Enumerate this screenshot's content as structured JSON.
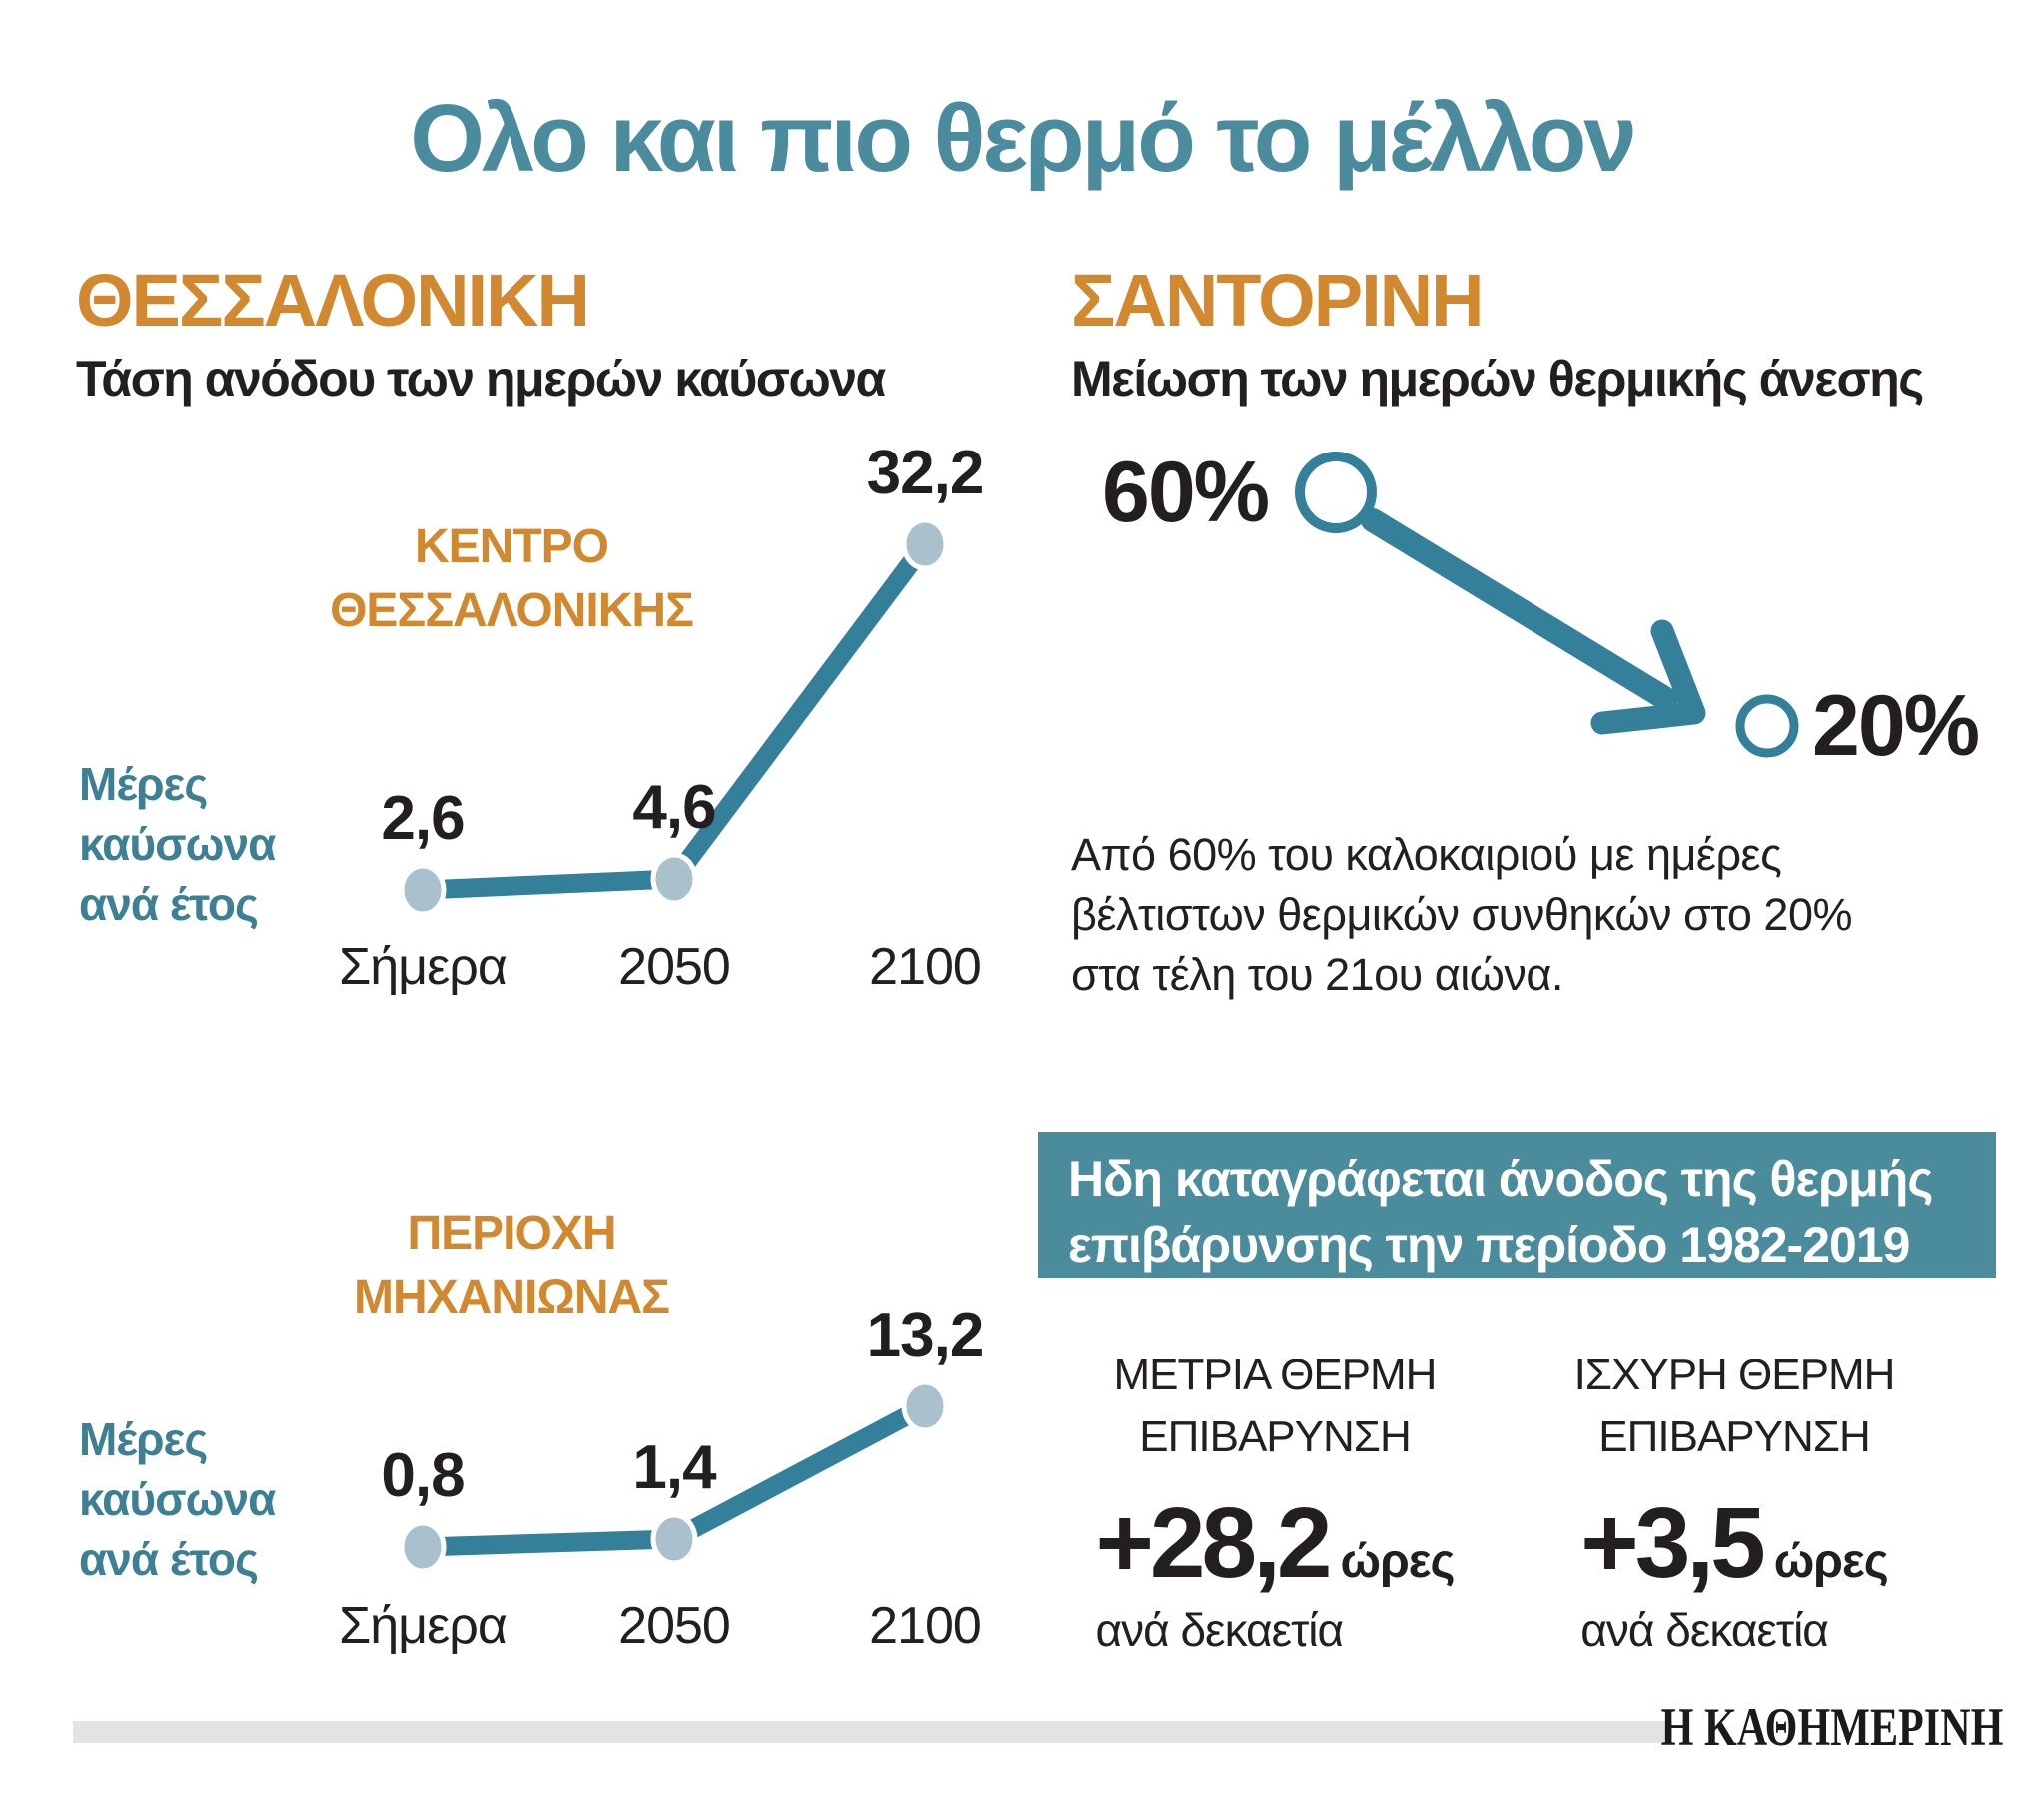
{
  "title": "Ολο και πιο θερμό το μέλλον",
  "colors": {
    "title_teal": "#4a8b9d",
    "orange": "#d1882e",
    "line_teal": "#34809b",
    "dot_fill": "#a9c0cd",
    "label_teal": "#3d7f93",
    "banner_bg": "#4a8b9c",
    "dark_text": "#231f20",
    "footer_bar": "#e4e3e2"
  },
  "left": {
    "heading": "ΘΕΣΣΑΛΟΝΙΚΗ",
    "subheading": "Τάση ανόδου των ημερών καύσωνα",
    "ylabel_lines": [
      "Μέρες",
      "καύσωνα",
      "ανά έτος"
    ],
    "charts": [
      {
        "title_lines": [
          "ΚΕΝΤΡΟ",
          "ΘΕΣΣΑΛΟΝΙΚΗΣ"
        ],
        "categories": [
          "Σήμερα",
          "2050",
          "2100"
        ],
        "value_labels": [
          "2,6",
          "4,6",
          "32,2"
        ]
      },
      {
        "title_lines": [
          "ΠΕΡΙΟΧΗ",
          "ΜΗΧΑΝΙΩΝΑΣ"
        ],
        "categories": [
          "Σήμερα",
          "2050",
          "2100"
        ],
        "value_labels": [
          "0,8",
          "1,4",
          "13,2"
        ]
      }
    ]
  },
  "right": {
    "heading": "ΣΑΝΤΟΡΙΝΗ",
    "subheading": "Μείωση των ημερών θερμικής άνεσης",
    "pct_from": "60%",
    "pct_to": "20%",
    "description": "Από 60% του καλοκαιριού με ημέρες βέλτιστων θερμικών συνθηκών στο 20% στα τέλη του 21ου αιώνα.",
    "banner_lines": [
      "Ηδη καταγράφεται άνοδος της θερμής",
      "επιβάρυνσης την περίοδο 1982-2019"
    ],
    "stats": [
      {
        "label_lines": [
          "ΜΕΤΡΙΑ ΘΕΡΜΗ",
          "ΕΠΙΒΑΡΥΝΣΗ"
        ],
        "value": "+28,2",
        "unit": "ώρες",
        "per": "ανά δεκαετία"
      },
      {
        "label_lines": [
          "ΙΣΧΥΡΗ ΘΕΡΜΗ",
          "ΕΠΙΒΑΡΥΝΣΗ"
        ],
        "value": "+3,5",
        "unit": "ώρες",
        "per": "ανά δεκαετία"
      }
    ]
  },
  "footer": {
    "logo": "Η ΚΑΘΗΜΕΡΙΝΗ"
  },
  "chart_data": [
    {
      "type": "line",
      "title": "ΚΕΝΤΡΟ ΘΕΣΣΑΛΟΝΙΚΗΣ",
      "subtitle": "Τάση ανόδου των ημερών καύσωνα",
      "categories": [
        "Σήμερα",
        "2050",
        "2100"
      ],
      "values": [
        2.6,
        4.6,
        32.2
      ],
      "ylabel": "Μέρες καύσωνα ανά έτος",
      "legend_position": "none",
      "grid": false
    },
    {
      "type": "line",
      "title": "ΠΕΡΙΟΧΗ ΜΗΧΑΝΙΩΝΑΣ",
      "subtitle": "Τάση ανόδου των ημερών καύσωνα",
      "categories": [
        "Σήμερα",
        "2050",
        "2100"
      ],
      "values": [
        0.8,
        1.4,
        13.2
      ],
      "ylabel": "Μέρες καύσωνα ανά έτος",
      "legend_position": "none",
      "grid": false
    },
    {
      "type": "line",
      "title": "ΣΑΝΤΟΡΙΝΗ — Μείωση των ημερών θερμικής άνεσης",
      "categories": [
        "60%",
        "20%"
      ],
      "values": [
        60,
        20
      ],
      "unit": "%",
      "annotation": "Από 60% του καλοκαιριού με ημέρες βέλτιστων θερμικών συνθηκών στο 20% στα τέλη του 21ου αιώνα."
    }
  ]
}
